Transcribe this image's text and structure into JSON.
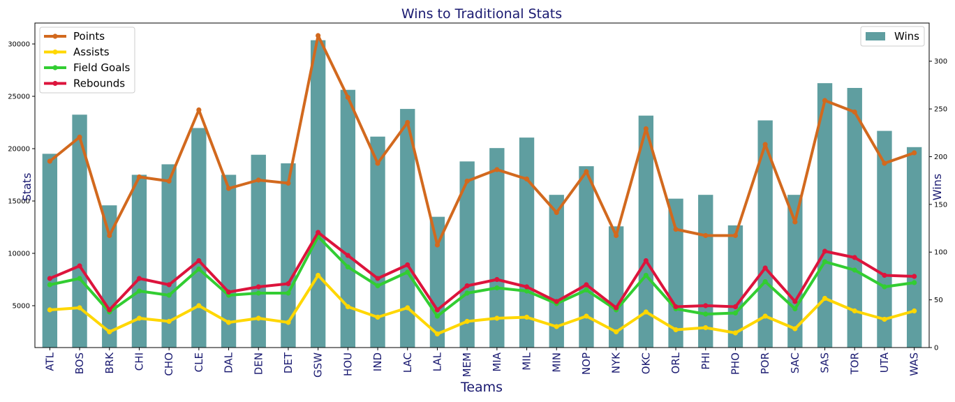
{
  "chart_data": {
    "type": "bar+line",
    "title": "Wins to Traditional Stats",
    "xlabel": "Teams",
    "ylabel_left": "Stats",
    "ylabel_right": "Wins",
    "categories": [
      "ATL",
      "BOS",
      "BRK",
      "CHI",
      "CHO",
      "CLE",
      "DAL",
      "DEN",
      "DET",
      "GSW",
      "HOU",
      "IND",
      "LAC",
      "LAL",
      "MEM",
      "MIA",
      "MIL",
      "MIN",
      "NOP",
      "NYK",
      "OKC",
      "ORL",
      "PHI",
      "PHO",
      "POR",
      "SAC",
      "SAS",
      "TOR",
      "UTA",
      "WAS"
    ],
    "left_axis": {
      "ylim": [
        1000,
        32000
      ],
      "ticks": [
        5000,
        10000,
        15000,
        20000,
        25000,
        30000
      ]
    },
    "right_axis": {
      "ylim": [
        0,
        340
      ],
      "ticks": [
        0,
        50,
        100,
        150,
        200,
        250,
        300
      ]
    },
    "bars": {
      "name": "Wins",
      "color": "#5f9ea0",
      "values": [
        203,
        244,
        149,
        181,
        192,
        230,
        181,
        202,
        193,
        322,
        270,
        221,
        250,
        137,
        195,
        209,
        220,
        160,
        190,
        127,
        243,
        156,
        160,
        128,
        238,
        160,
        277,
        272,
        227,
        210
      ]
    },
    "series": [
      {
        "name": "Points",
        "color": "#d2691e",
        "values": [
          18800,
          21100,
          11700,
          17300,
          16900,
          23700,
          16200,
          17000,
          16700,
          30800,
          24900,
          18600,
          22500,
          10800,
          16900,
          18000,
          17100,
          13900,
          17800,
          11700,
          21900,
          12300,
          11700,
          11700,
          20400,
          13000,
          24600,
          23500,
          18600,
          19600
        ]
      },
      {
        "name": "Assists",
        "color": "#ffd700",
        "values": [
          4600,
          4800,
          2500,
          3800,
          3500,
          5000,
          3400,
          3800,
          3400,
          7900,
          4900,
          3900,
          4800,
          2300,
          3500,
          3800,
          3900,
          3000,
          4000,
          2500,
          4400,
          2700,
          2900,
          2400,
          4000,
          2800,
          5700,
          4500,
          3700,
          4500
        ]
      },
      {
        "name": "Field Goals",
        "color": "#32cd32",
        "values": [
          7000,
          7600,
          4400,
          6400,
          6000,
          8500,
          6000,
          6200,
          6200,
          11600,
          8700,
          6900,
          8200,
          4000,
          6200,
          6700,
          6400,
          5200,
          6500,
          4600,
          7900,
          4700,
          4200,
          4300,
          7300,
          4700,
          9200,
          8400,
          6800,
          7200
        ]
      },
      {
        "name": "Rebounds",
        "color": "#dc143c",
        "values": [
          7600,
          8800,
          4600,
          7600,
          7000,
          9300,
          6300,
          6800,
          7100,
          12000,
          9800,
          7600,
          8900,
          4600,
          6900,
          7500,
          6800,
          5400,
          7000,
          4800,
          9300,
          4900,
          5000,
          4900,
          8600,
          5400,
          10200,
          9600,
          7900,
          7800
        ]
      }
    ],
    "legend_left": {
      "placement": "top-left",
      "entries": [
        "Points",
        "Assists",
        "Field Goals",
        "Rebounds"
      ]
    },
    "legend_right": {
      "placement": "top-right",
      "entries": [
        "Wins"
      ]
    },
    "grid": false
  }
}
